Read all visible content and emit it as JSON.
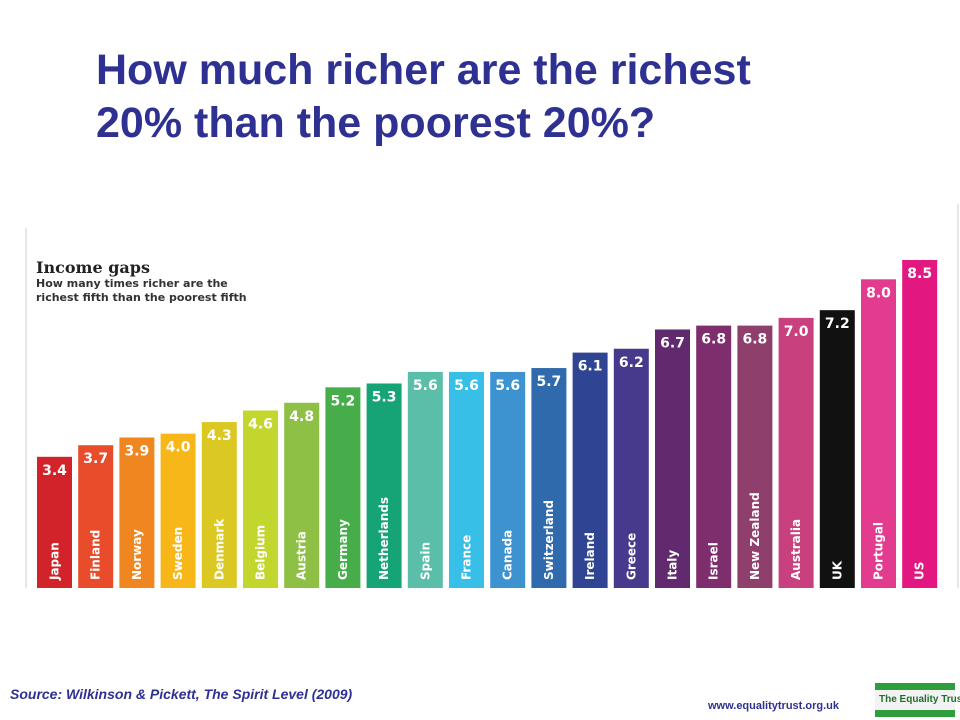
{
  "slide": {
    "title": "How much richer are the richest\n20% than the poorest 20%?",
    "source": "Source: Wilkinson & Pickett, The Spirit Level (2009)",
    "url": "www.equalitytrust.org.uk",
    "logo_text": "The Equality Trust"
  },
  "chart_data": {
    "type": "bar",
    "title": "Income gaps",
    "subtitle_lines": [
      "How many times richer are the",
      "richest fifth than the poorest fifth"
    ],
    "categories": [
      "Japan",
      "Finland",
      "Norway",
      "Sweden",
      "Denmark",
      "Belgium",
      "Austria",
      "Germany",
      "Netherlands",
      "Spain",
      "France",
      "Canada",
      "Switzerland",
      "Ireland",
      "Greece",
      "Italy",
      "Israel",
      "New Zealand",
      "Australia",
      "UK",
      "Portugal",
      "US"
    ],
    "values": [
      3.4,
      3.7,
      3.9,
      4.0,
      4.3,
      4.6,
      4.8,
      5.2,
      5.3,
      5.6,
      5.6,
      5.6,
      5.7,
      6.1,
      6.2,
      6.7,
      6.8,
      6.8,
      7.0,
      7.2,
      8.0,
      8.5
    ],
    "value_labels": [
      "3.4",
      "3.7",
      "3.9",
      "4.0",
      "4.3",
      "4.6",
      "4.8",
      "5.2",
      "5.3",
      "5.6",
      "5.6",
      "5.6",
      "5.7",
      "6.1",
      "6.2",
      "6.7",
      "6.8",
      "6.8",
      "7.0",
      "7.2",
      "8.0",
      "8.5"
    ],
    "colors": [
      "#d2232a",
      "#e84c2b",
      "#f0861f",
      "#f8b719",
      "#dcc823",
      "#c2d62d",
      "#8fc046",
      "#46ad4a",
      "#16a376",
      "#5bbea9",
      "#38bfe8",
      "#3c93cf",
      "#2f6aad",
      "#2f4593",
      "#473a8c",
      "#612a6e",
      "#7e2d6d",
      "#8f3f6c",
      "#c8407e",
      "#111111",
      "#e33b8e",
      "#e2177f"
    ],
    "ylim": [
      0,
      8.5
    ],
    "grid": false,
    "legend": "none"
  }
}
